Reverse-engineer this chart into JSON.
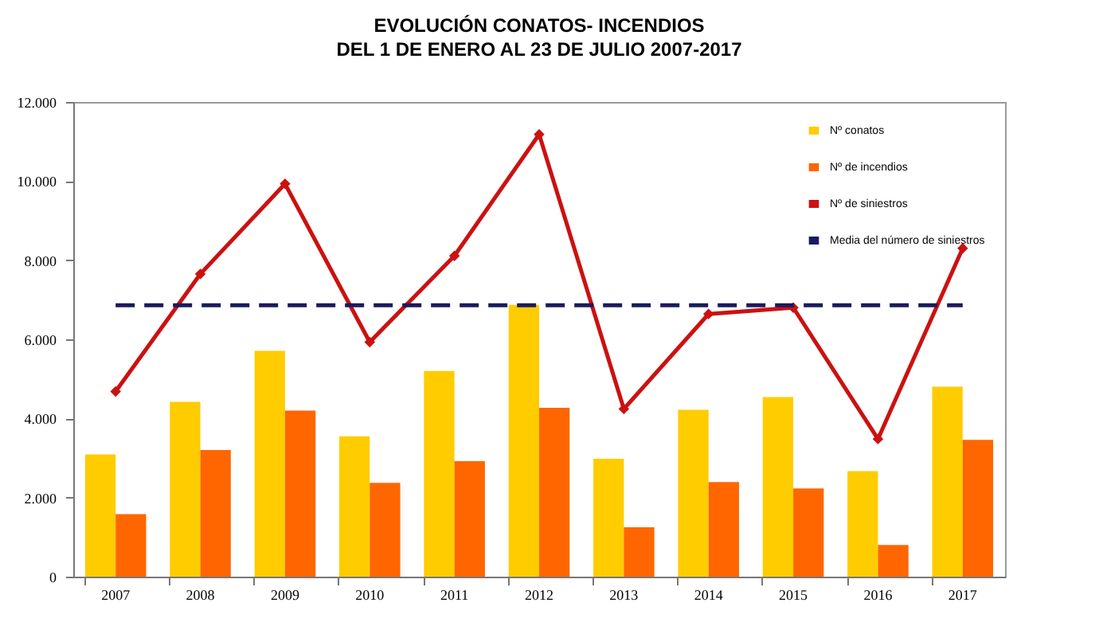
{
  "chart_data": {
    "type": "bar",
    "title": "EVOLUCIÓN CONATOS- INCENDIOS",
    "subtitle": "DEL 1 DE ENERO AL 23 DE JULIO 2007-2017",
    "categories": [
      "2007",
      "2008",
      "2009",
      "2010",
      "2011",
      "2012",
      "2013",
      "2014",
      "2015",
      "2016",
      "2017"
    ],
    "series": [
      {
        "name": "Nº conatos",
        "color": "#ffcc00",
        "values": [
          3090,
          4420,
          5710,
          3550,
          5200,
          6870,
          2980,
          4220,
          4540,
          2670,
          4800
        ]
      },
      {
        "name": "Nº de incendios",
        "color": "#ff6600",
        "values": [
          1580,
          3200,
          4200,
          2370,
          2920,
          4270,
          1250,
          2390,
          2230,
          800,
          3460
        ]
      },
      {
        "name": "Nº de siniestros",
        "type": "line",
        "color": "#cc1111",
        "marker": "diamond",
        "values": [
          4680,
          7650,
          9930,
          5930,
          8110,
          11180,
          4240,
          6640,
          6800,
          3480,
          8300
        ]
      }
    ],
    "ref_lines": [
      {
        "axis": "y",
        "value": 6860,
        "label": "Media del número de siniestros",
        "color": "#1a1a5e",
        "line_style": "dashed"
      }
    ],
    "ylim": [
      0,
      12000
    ],
    "yticks": [
      {
        "value": 0,
        "label": "0"
      },
      {
        "value": 2000,
        "label": "2.000"
      },
      {
        "value": 4000,
        "label": "4.000"
      },
      {
        "value": 6000,
        "label": "6.000"
      },
      {
        "value": 8000,
        "label": "8.000"
      },
      {
        "value": 10000,
        "label": "10.000"
      },
      {
        "value": 12000,
        "label": "12.000"
      }
    ],
    "grid": false,
    "legend": "top right"
  }
}
